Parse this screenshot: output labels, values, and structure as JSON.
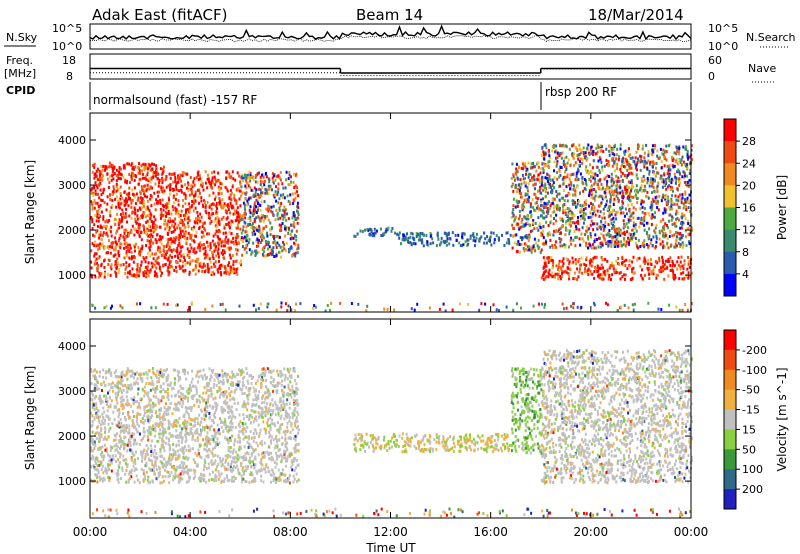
{
  "header": {
    "station": "Adak East (fitACF)",
    "beam": "Beam 14",
    "date": "18/Mar/2014"
  },
  "noise_panel": {
    "left_label": "N.Sky",
    "right_label": "N.Search",
    "y_ticks_left": [
      "10^5",
      "10^0"
    ],
    "y_ticks_right": [
      "10^5",
      "10^0"
    ]
  },
  "freq_panel": {
    "left_label_line1": "Freq.",
    "left_label_line2": "[MHz]",
    "left_ticks": [
      "18",
      "8"
    ],
    "right_label": "Nave",
    "right_ticks": [
      "60",
      "0"
    ],
    "cpid_label": "CPID",
    "segments": [
      {
        "start_hour": 0,
        "end_hour": 10,
        "freq": 12.2
      },
      {
        "start_hour": 10,
        "end_hour": 18,
        "freq": 10.4
      },
      {
        "start_hour": 18,
        "end_hour": 24,
        "freq": 12.2
      }
    ],
    "nave_segments": [
      {
        "start_hour": 0,
        "end_hour": 10,
        "nave": 15
      },
      {
        "start_hour": 10,
        "end_hour": 18,
        "nave": 8
      },
      {
        "start_hour": 18,
        "end_hour": 24,
        "nave": 24
      }
    ],
    "modes": [
      {
        "label": "normalsound (fast) -157 RF",
        "start_hour": 0,
        "end_hour": 18
      },
      {
        "label": "rbsp 200 RF",
        "start_hour": 18,
        "end_hour": 24
      }
    ]
  },
  "chart_data": [
    {
      "type": "heatmap",
      "ylabel": "Slant Range [km]",
      "y_ticks": [
        1000,
        2000,
        3000,
        4000
      ],
      "ylim": [
        180,
        4600
      ],
      "xlim": [
        0,
        24
      ],
      "colorbar": {
        "label": "Power [dB]",
        "ticks": [
          "4",
          "8",
          "12",
          "16",
          "20",
          "24",
          "28"
        ],
        "colors": [
          "#0000ff",
          "#2a5cae",
          "#3a8a6e",
          "#4daa40",
          "#f0c030",
          "#f08a20",
          "#f04a10",
          "#ff0000"
        ]
      },
      "scatter_regions": [
        {
          "start_hour": 0.0,
          "end_hour": 3.0,
          "range_min": 950,
          "range_max": 3500,
          "level": "high"
        },
        {
          "start_hour": 3.0,
          "end_hour": 6.0,
          "range_min": 1000,
          "range_max": 3300,
          "level": "high"
        },
        {
          "start_hour": 6.0,
          "end_hour": 8.3,
          "range_min": 1400,
          "range_max": 3300,
          "level": "mixed"
        },
        {
          "start_hour": 10.5,
          "end_hour": 12.2,
          "range_min": 1850,
          "range_max": 2050,
          "level": "low"
        },
        {
          "start_hour": 12.2,
          "end_hour": 16.8,
          "range_min": 1650,
          "range_max": 1950,
          "level": "low"
        },
        {
          "start_hour": 16.8,
          "end_hour": 18.0,
          "range_min": 1500,
          "range_max": 3500,
          "level": "mixed"
        },
        {
          "start_hour": 18.0,
          "end_hour": 24.0,
          "range_min": 900,
          "range_max": 1400,
          "level": "high"
        },
        {
          "start_hour": 18.0,
          "end_hour": 24.0,
          "range_min": 1600,
          "range_max": 3900,
          "level": "mixed"
        }
      ]
    },
    {
      "type": "heatmap",
      "ylabel": "Slant Range [km]",
      "y_ticks": [
        1000,
        2000,
        3000,
        4000
      ],
      "ylim": [
        180,
        4600
      ],
      "xlim": [
        0,
        24
      ],
      "x_ticks": [
        "00:00",
        "04:00",
        "08:00",
        "12:00",
        "16:00",
        "20:00",
        "00:00"
      ],
      "xlabel": "Time UT",
      "colorbar": {
        "label": "Velocity [m s^-1]",
        "ticks": [
          "200",
          "100",
          "50",
          "15",
          "-15",
          "-50",
          "-100",
          "-200"
        ],
        "colors": [
          "#2020c0",
          "#2f6a8a",
          "#3a9a3a",
          "#88d040",
          "#c0c0c0",
          "#f0b040",
          "#f08a20",
          "#f04a10",
          "#ff0000"
        ]
      },
      "scatter_regions": [
        {
          "start_hour": 0.0,
          "end_hour": 8.3,
          "range_min": 950,
          "range_max": 3500,
          "level": "ground"
        },
        {
          "start_hour": 10.5,
          "end_hour": 16.8,
          "range_min": 1650,
          "range_max": 2050,
          "level": "mixed"
        },
        {
          "start_hour": 16.8,
          "end_hour": 18.0,
          "range_min": 1600,
          "range_max": 3500,
          "level": "positive"
        },
        {
          "start_hour": 18.0,
          "end_hour": 24.0,
          "range_min": 950,
          "range_max": 3900,
          "level": "ground"
        }
      ]
    }
  ]
}
